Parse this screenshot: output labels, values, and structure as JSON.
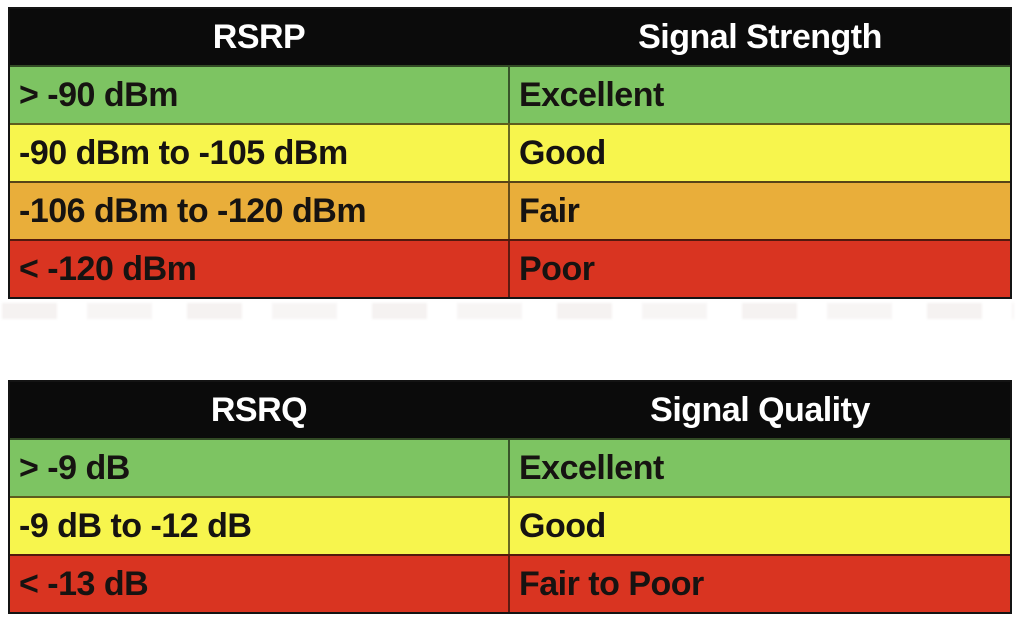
{
  "colors": {
    "header_bg": "#0b0b0b",
    "header_text": "#ffffff",
    "excellent_green": "#7dc462",
    "good_yellow": "#f7f54d",
    "fair_orange": "#e9ae3a",
    "poor_red": "#d93421",
    "cell_text": "#161311"
  },
  "chart_data": [
    {
      "type": "table",
      "columns": [
        "RSRP",
        "Signal Strength"
      ],
      "rows": [
        [
          "> -90 dBm",
          "Excellent"
        ],
        [
          "-90 dBm to -105 dBm",
          "Good"
        ],
        [
          "-106 dBm to -120 dBm",
          "Fair"
        ],
        [
          "< -120 dBm",
          "Poor"
        ]
      ],
      "row_colors": [
        "#7dc462",
        "#f7f54d",
        "#e9ae3a",
        "#d93421"
      ]
    },
    {
      "type": "table",
      "columns": [
        "RSRQ",
        "Signal Quality"
      ],
      "rows": [
        [
          "> -9 dB",
          "Excellent"
        ],
        [
          "-9 dB to -12 dB",
          "Good"
        ],
        [
          "< -13 dB",
          "Fair to Poor"
        ]
      ],
      "row_colors": [
        "#7dc462",
        "#f7f54d",
        "#d93421"
      ]
    }
  ]
}
